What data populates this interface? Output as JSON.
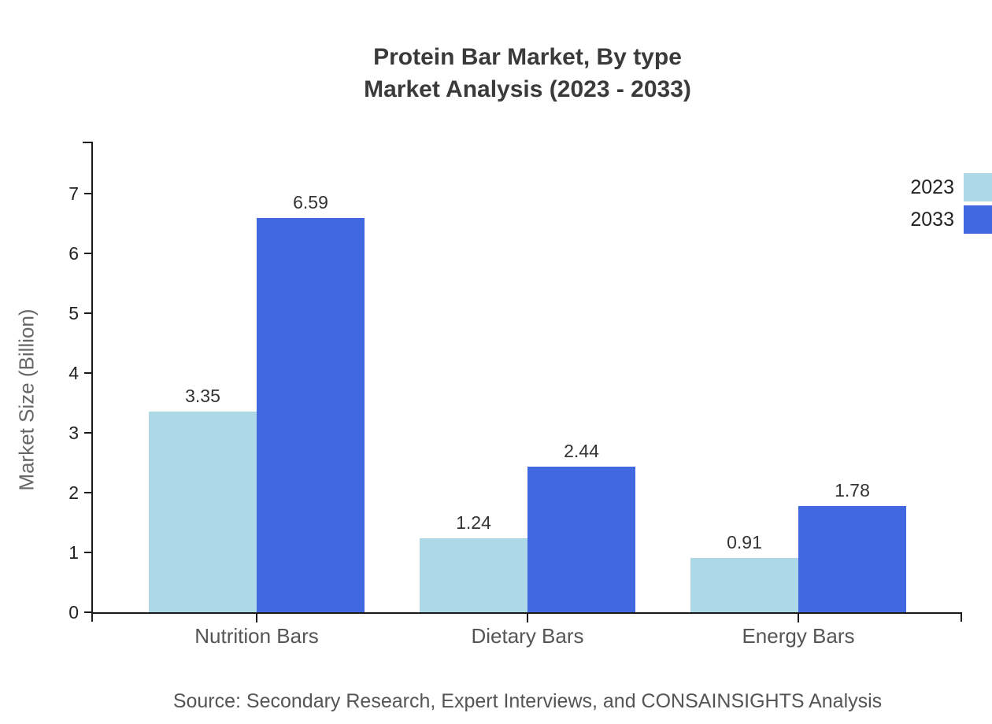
{
  "chart_data": {
    "type": "bar",
    "title": "Protein Bar Market, By type",
    "subtitle": "Market Analysis (2023 - 2033)",
    "ylabel": "Market Size (Billion)",
    "xlabel": "",
    "categories": [
      "Nutrition Bars",
      "Dietary Bars",
      "Energy Bars"
    ],
    "series": [
      {
        "name": "2023",
        "values": [
          3.35,
          1.24,
          0.91
        ],
        "color": "#add8e6"
      },
      {
        "name": "2033",
        "values": [
          6.59,
          2.44,
          1.78
        ],
        "color": "#4268e1"
      }
    ],
    "value_labels": [
      "3.35",
      "6.59",
      "1.24",
      "2.44",
      "0.91",
      "1.78"
    ],
    "yticks": [
      0,
      1,
      2,
      3,
      4,
      5,
      6,
      7
    ],
    "ylim": [
      0,
      7.9
    ],
    "grid": false,
    "legend_position": "top-right",
    "source": "Source: Secondary Research, Expert Interviews, and CONSAINSIGHTS Analysis"
  },
  "colors": {
    "background": "#ffffff",
    "title": "#3a3a3a",
    "axis": "#1a1a1a",
    "tick_label": "#222222",
    "category_label": "#555555",
    "value_label": "#333333",
    "axis_label": "#666666",
    "source": "#555555",
    "series_2023": "#add8e6",
    "series_2033": "#4268e1"
  }
}
